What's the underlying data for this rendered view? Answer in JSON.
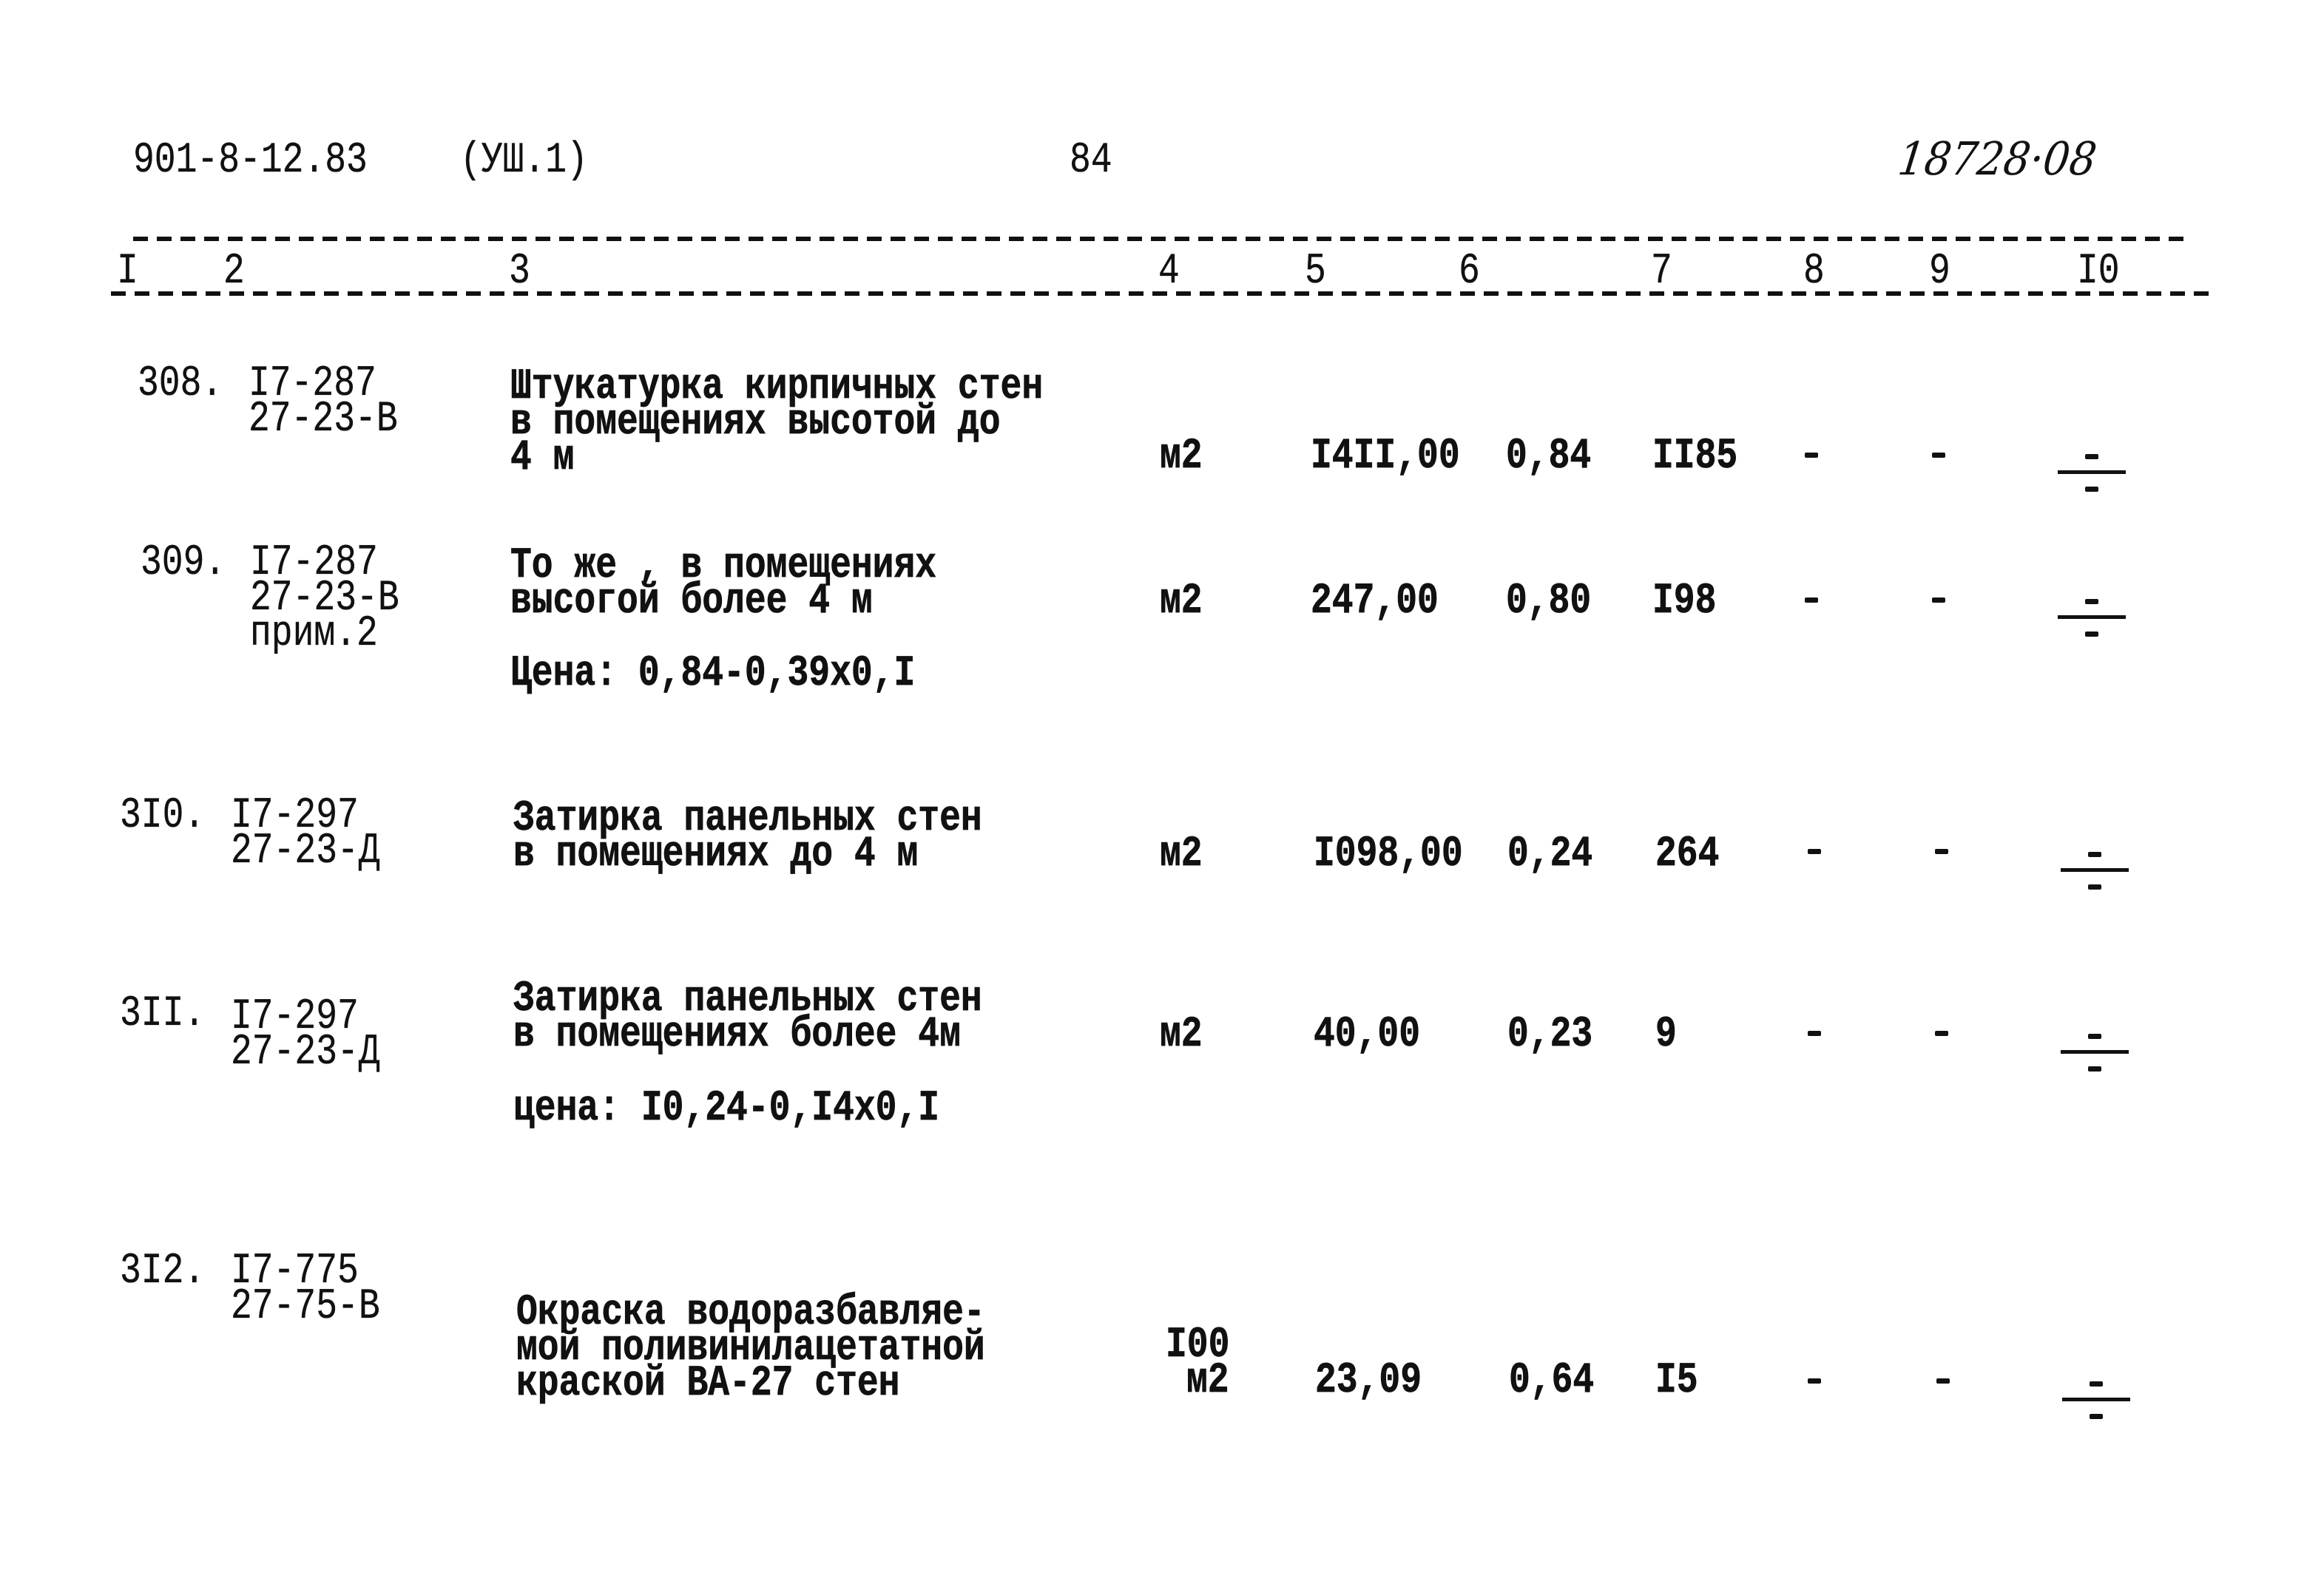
{
  "header": {
    "doc_code": "901-8-12.83",
    "section": "(УШ.1)",
    "page_number": "84",
    "handwritten_number": "18728·08"
  },
  "columns": [
    "I",
    "2",
    "3",
    "4",
    "5",
    "6",
    "7",
    "8",
    "9",
    "I0"
  ],
  "rows": [
    {
      "num": "308.",
      "code": [
        "I7-287",
        "27-23-В"
      ],
      "desc": [
        "Штукатурка кирпичных стен",
        "в помещениях высотой до",
        "4 м"
      ],
      "unit": [
        "м2"
      ],
      "qty": "I4II,00",
      "price": "0,84",
      "total": "II85",
      "c8": "-",
      "c9": "-",
      "c10": "fraction-dash-icon"
    },
    {
      "num": "309.",
      "code": [
        "I7-287",
        "27-23-В",
        "прим.2"
      ],
      "desc": [
        "То же , в помещениях",
        "высогой более 4 м"
      ],
      "note": "Цена: 0,84-0,39х0,I",
      "unit": [
        "м2"
      ],
      "qty": "247,00",
      "price": "0,80",
      "total": "I98",
      "c8": "-",
      "c9": "-",
      "c10": "fraction-dash-icon"
    },
    {
      "num": "3I0.",
      "code": [
        "I7-297",
        "27-23-Д"
      ],
      "desc": [
        "Затирка панельных стен",
        "в помещениях до 4 м"
      ],
      "unit": [
        "м2"
      ],
      "qty": "I098,00",
      "price": "0,24",
      "total": "264",
      "c8": "-",
      "c9": "-",
      "c10": "fraction-dash-icon"
    },
    {
      "num": "3II.",
      "code": [
        "I7-297",
        "27-23-Д"
      ],
      "desc": [
        "Затирка панельных стен",
        "в помещениях более 4м"
      ],
      "note": "цена: I0,24-0,I4х0,I",
      "unit": [
        "м2"
      ],
      "qty": "40,00",
      "price": "0,23",
      "total": "9",
      "c8": "-",
      "c9": "-",
      "c10": "fraction-dash-icon"
    },
    {
      "num": "3I2.",
      "code": [
        "I7-775",
        "27-75-В"
      ],
      "desc": [
        "Окраска водоразбавляе-",
        "мой поливинилацетатной",
        "краской ВА-27 стен"
      ],
      "unit": [
        "I00",
        "м2"
      ],
      "qty": "23,09",
      "price": "0,64",
      "total": "I5",
      "c8": "-",
      "c9": "-",
      "c10": "fraction-dash-icon"
    }
  ]
}
